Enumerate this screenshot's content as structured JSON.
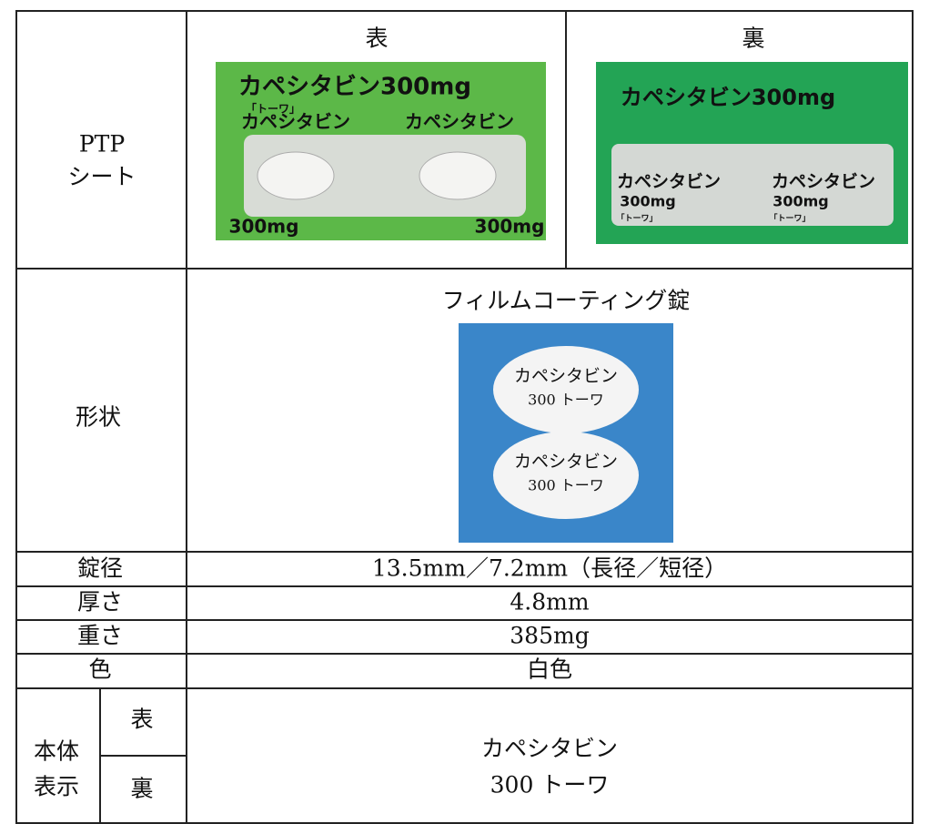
{
  "table": {
    "ptp": {
      "label": [
        "PTP",
        "シート"
      ],
      "front_heading": "表",
      "back_heading": "裏",
      "front_image": {
        "title": "カペシタビン300mg",
        "brand": "「トーワ」",
        "names": [
          "カペシタビン",
          "カペシタビン"
        ],
        "doses": [
          "300mg",
          "300mg"
        ]
      },
      "back_image": {
        "title": "カペシタビン300mg",
        "names": [
          "カペシタビン",
          "カペシタビン"
        ],
        "doses": [
          "300mg",
          "300mg"
        ],
        "brands": [
          "「トーワ」",
          "「トーワ」"
        ]
      }
    },
    "shape": {
      "label": "形状",
      "caption": "フィルムコーティング錠",
      "tablet_imprint": [
        "カペシタビン",
        "300 トーワ"
      ]
    },
    "rows": [
      [
        "錠径",
        "13.5mm／7.2mm（長径／短径）"
      ],
      [
        "厚さ",
        "4.8mm"
      ],
      [
        "重さ",
        "385mg"
      ],
      [
        "色",
        "白色"
      ]
    ],
    "imprint": {
      "label": [
        "本体",
        "表示"
      ],
      "sides": [
        "表",
        "裏"
      ],
      "text": [
        "カペシタビン",
        "300 トーワ"
      ]
    }
  }
}
